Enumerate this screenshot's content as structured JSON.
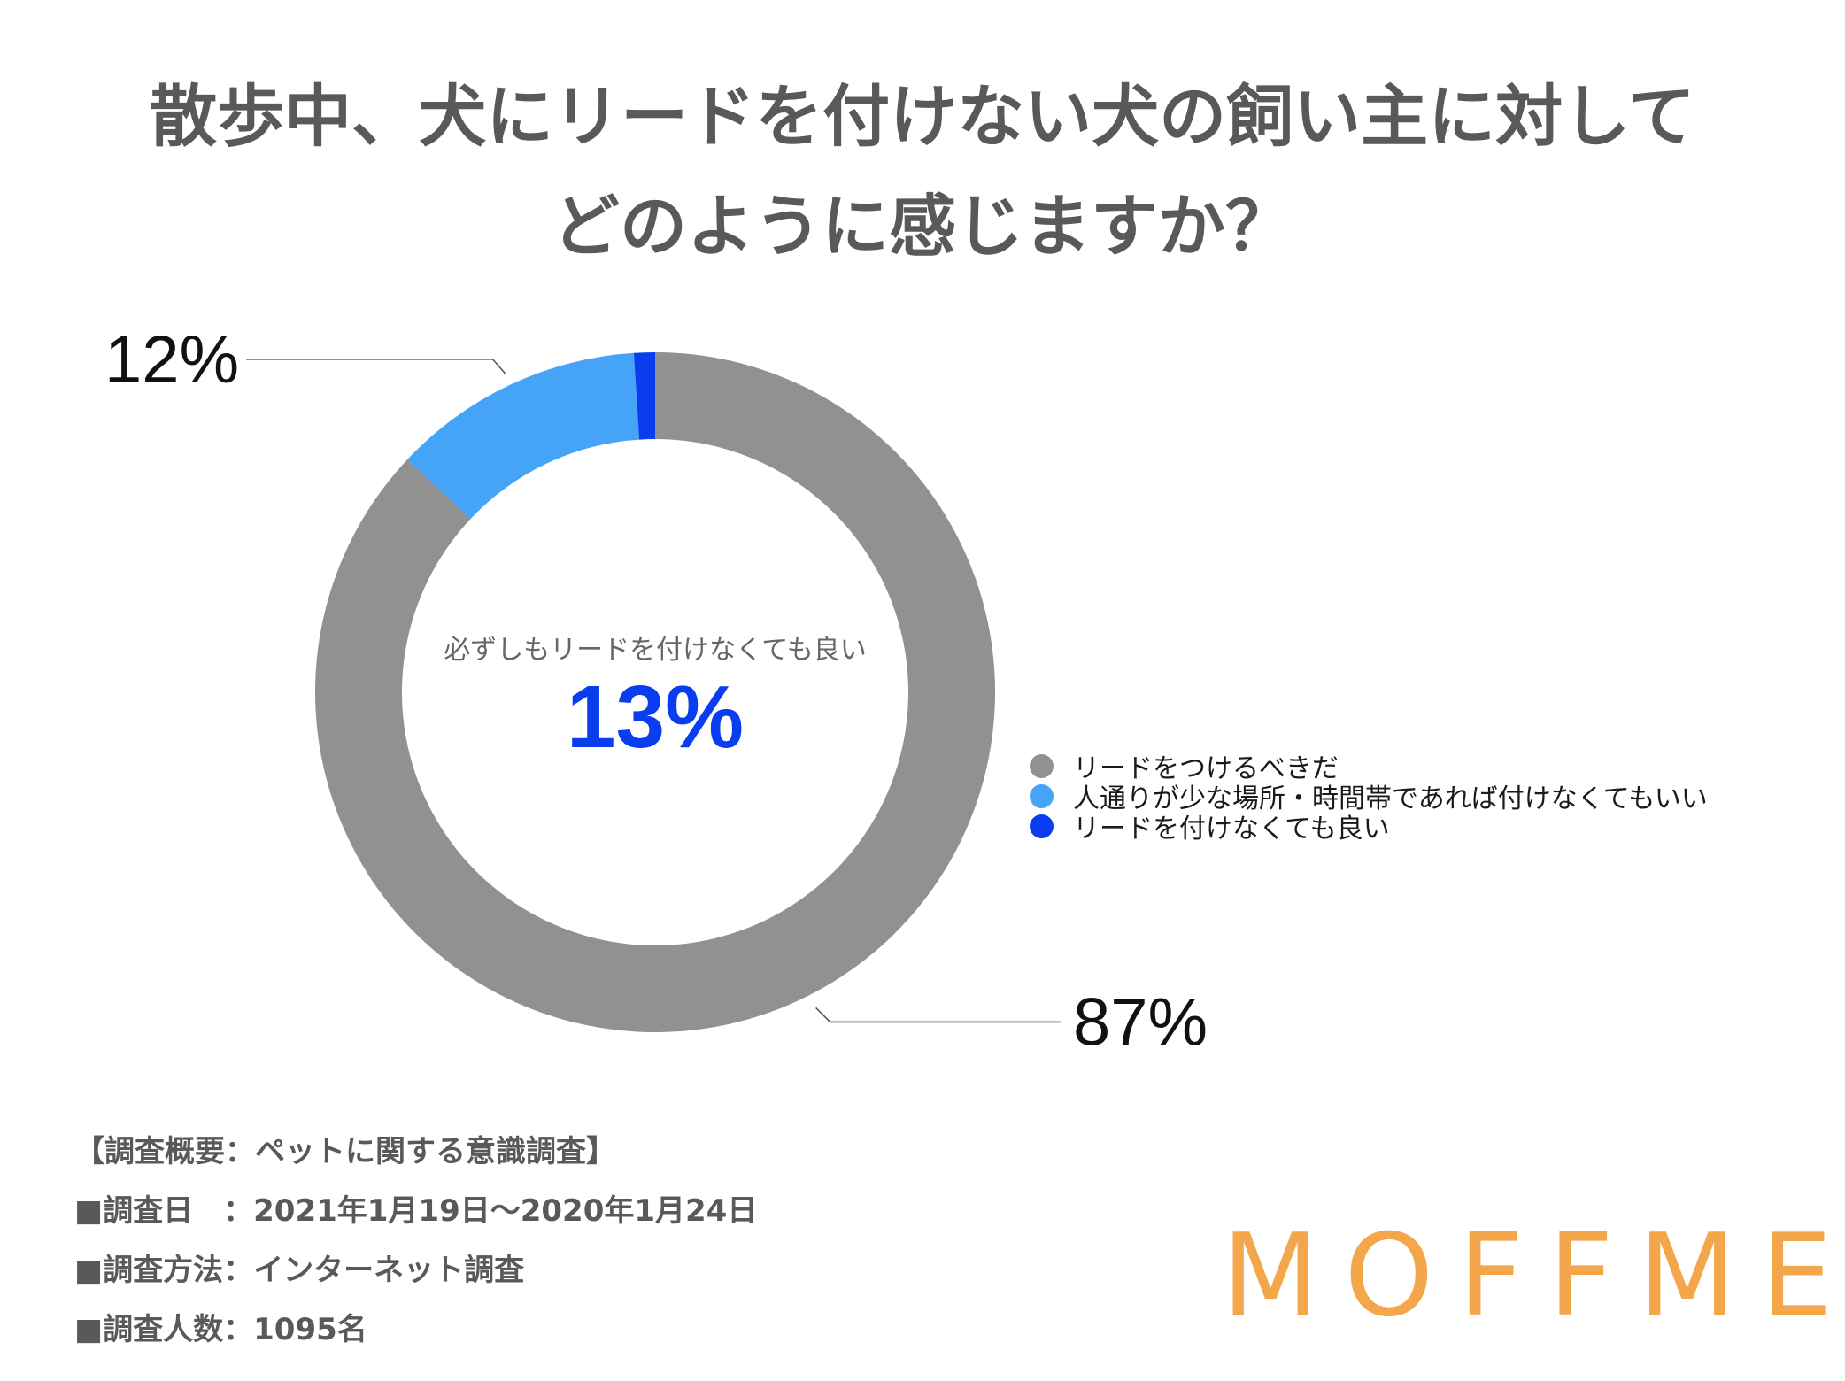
{
  "title": {
    "line1": "散歩中、犬にリードを付けない犬の飼い主に対して",
    "line2": "どのように感じますか？"
  },
  "colors": {
    "slice_gray": "#919191",
    "slice_light_blue": "#45a4f8",
    "slice_blue": "#0a3df0",
    "leader": "#555555",
    "logo": "#f4a64a"
  },
  "chart_data": {
    "type": "pie",
    "donut": true,
    "slices": [
      {
        "label": "リードをつけるべきだ",
        "value": 87,
        "display": "87%",
        "color": "#919191"
      },
      {
        "label": "人通りが少な場所・時間帯であれば付けなくてもいい",
        "value": 12,
        "display": "12%",
        "color": "#45a4f8"
      },
      {
        "label": "リードを付けなくても良い",
        "value": 1,
        "display": "",
        "color": "#0a3df0"
      }
    ],
    "center_caption": "必ずしもリードを付けなくても良い",
    "center_value": "13%",
    "legend_position": "right"
  },
  "footer": {
    "line1": "【調査概要：ペットに関する意識調査】",
    "line2": "■調査日　：2021年1月19日〜2020年1月24日",
    "line3": "■調査方法：インターネット調査",
    "line4": "■調査人数：1095名"
  },
  "logo": {
    "text": "MOFFME"
  }
}
